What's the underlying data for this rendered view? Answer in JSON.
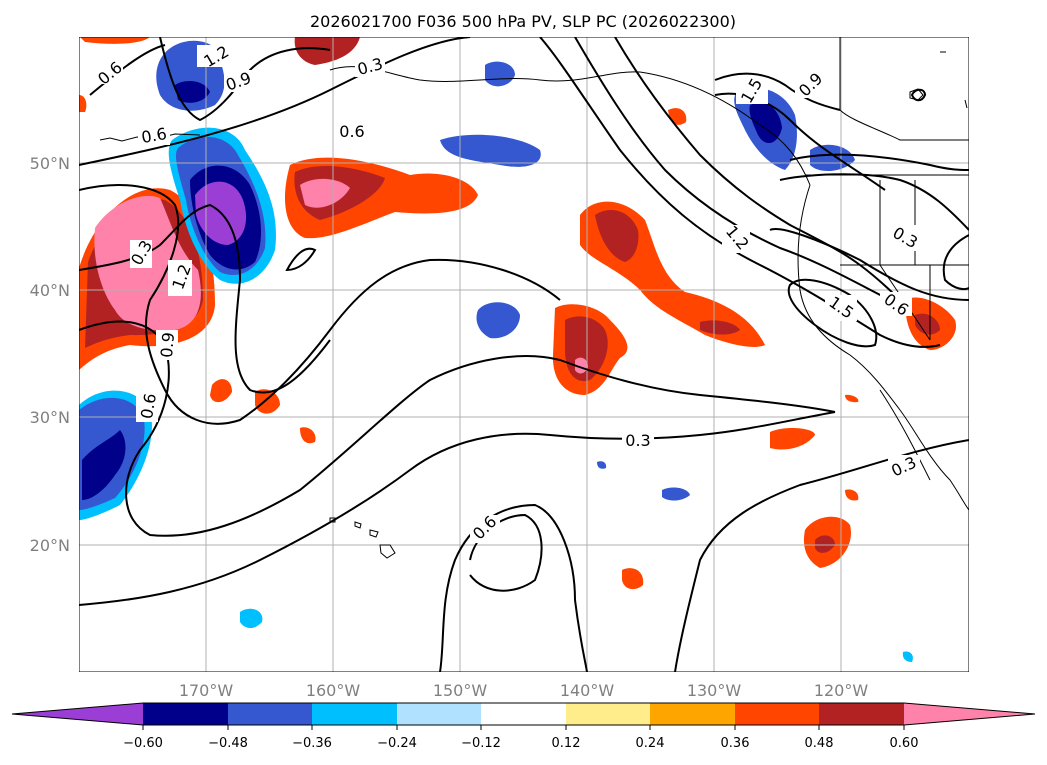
{
  "title": "2026021700 F036 500 hPa PV, SLP PC (2026022300)",
  "map": {
    "lat_labels": [
      "50°N",
      "40°N",
      "30°N",
      "20°N"
    ],
    "lon_labels": [
      "170°W",
      "160°W",
      "150°W",
      "140°W",
      "130°W",
      "120°W"
    ],
    "contour_labels": [
      "1.2",
      "0.9",
      "0.6",
      "0.6",
      "0.6",
      "0.3",
      "1.2",
      "0.9",
      "0.6",
      "0.3",
      "0.6",
      "0.3",
      "1.2",
      "0.3",
      "1.5",
      "0.6",
      "0.9",
      "1.5",
      "0.3"
    ]
  },
  "colorbar": {
    "ticks": [
      "−0.60",
      "−0.48",
      "−0.36",
      "−0.24",
      "−0.12",
      "0.12",
      "0.24",
      "0.36",
      "0.48",
      "0.60"
    ],
    "colors": {
      "lt_neg060": "#9a3ed6",
      "neg060_neg048": "#00008b",
      "neg048_neg036": "#3558d0",
      "neg036_neg024": "#00bfff",
      "neg024_neg012": "#b0e2ff",
      "neg012_012": "#ffffff",
      "p012_p024": "#ffec8b",
      "p024_p036": "#ffa500",
      "p036_p048": "#ff4500",
      "p048_p060": "#b22222",
      "gt_p060": "#ff82ab"
    }
  }
}
